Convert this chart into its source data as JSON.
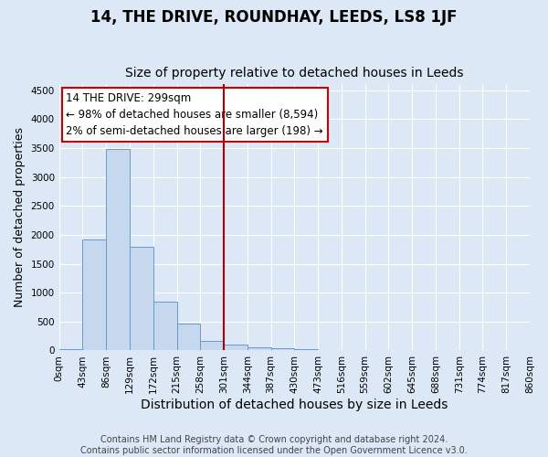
{
  "title": "14, THE DRIVE, ROUNDHAY, LEEDS, LS8 1JF",
  "subtitle": "Size of property relative to detached houses in Leeds",
  "xlabel": "Distribution of detached houses by size in Leeds",
  "ylabel": "Number of detached properties",
  "bin_edges": [
    0,
    43,
    86,
    129,
    172,
    215,
    258,
    301,
    344,
    387,
    430,
    473,
    516,
    559,
    602,
    645,
    688,
    731,
    774,
    817,
    860
  ],
  "bin_labels": [
    "0sqm",
    "43sqm",
    "86sqm",
    "129sqm",
    "172sqm",
    "215sqm",
    "258sqm",
    "301sqm",
    "344sqm",
    "387sqm",
    "430sqm",
    "473sqm",
    "516sqm",
    "559sqm",
    "602sqm",
    "645sqm",
    "688sqm",
    "731sqm",
    "774sqm",
    "817sqm",
    "860sqm"
  ],
  "bar_heights": [
    30,
    1920,
    3490,
    1790,
    840,
    460,
    170,
    100,
    55,
    40,
    30,
    0,
    0,
    0,
    0,
    0,
    0,
    0,
    0,
    0
  ],
  "bar_color": "#c5d8ee",
  "bar_edge_color": "#6699cc",
  "vline_x": 301,
  "vline_color": "#aa0000",
  "annotation_line1": "14 THE DRIVE: 299sqm",
  "annotation_line2": "← 98% of detached houses are smaller (8,594)",
  "annotation_line3": "2% of semi-detached houses are larger (198) →",
  "annotation_box_color": "white",
  "annotation_box_edge_color": "#cc0000",
  "ylim": [
    0,
    4600
  ],
  "yticks": [
    0,
    500,
    1000,
    1500,
    2000,
    2500,
    3000,
    3500,
    4000,
    4500
  ],
  "bg_color": "#dce8f5",
  "grid_color": "white",
  "footnote": "Contains HM Land Registry data © Crown copyright and database right 2024.\nContains public sector information licensed under the Open Government Licence v3.0.",
  "title_fontsize": 12,
  "subtitle_fontsize": 10,
  "xlabel_fontsize": 10,
  "ylabel_fontsize": 9,
  "annotation_fontsize": 8.5,
  "footnote_fontsize": 7,
  "tick_fontsize": 7.5
}
